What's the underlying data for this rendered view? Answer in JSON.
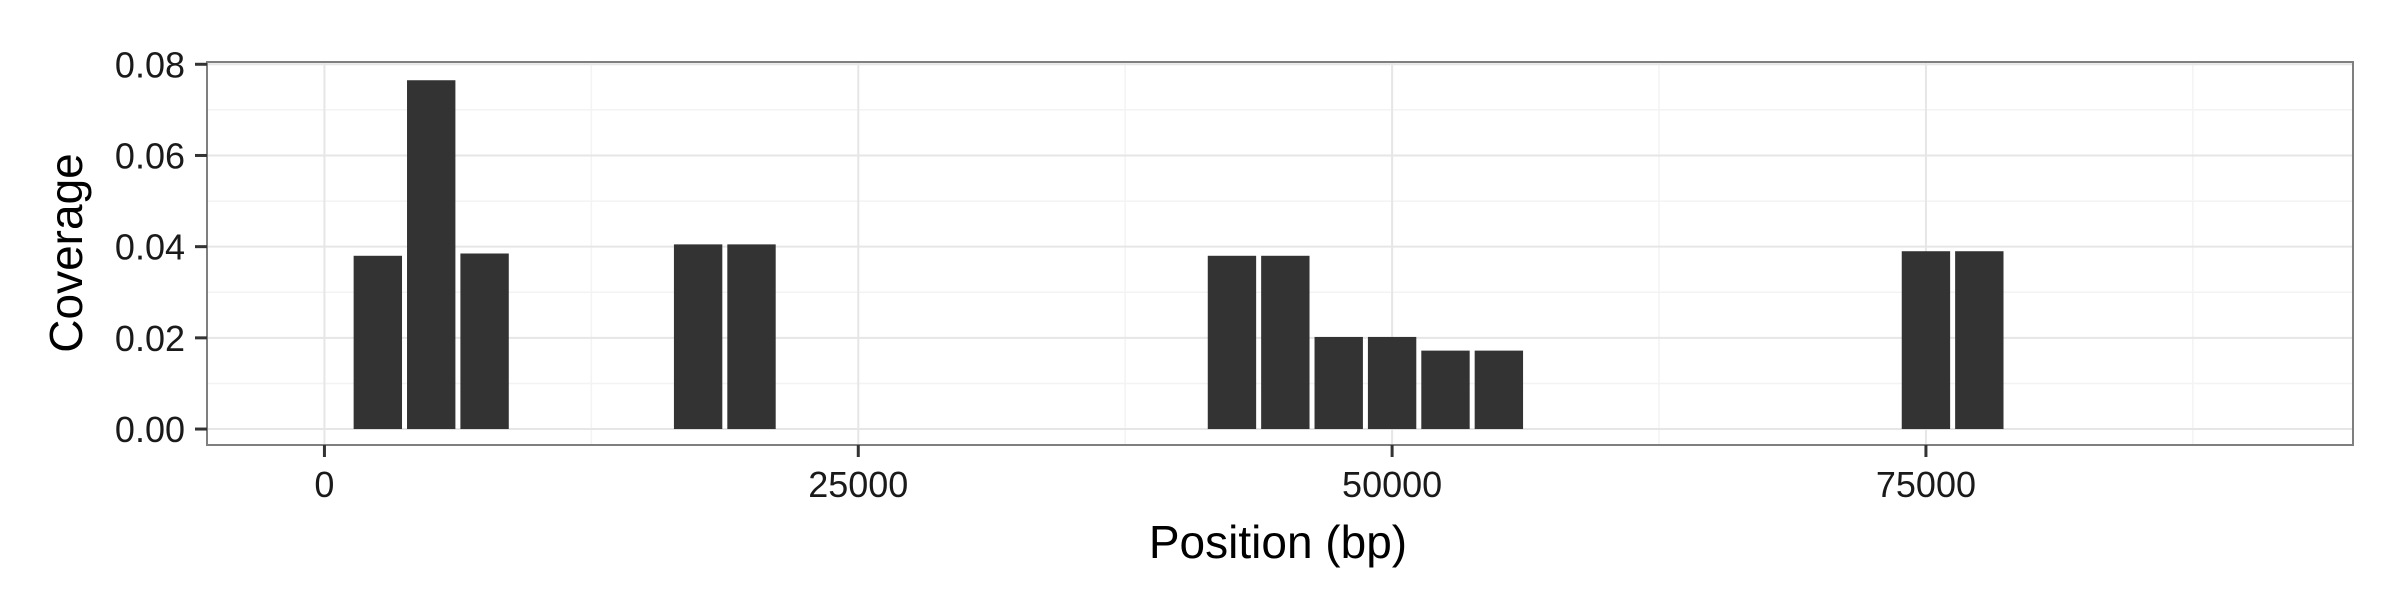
{
  "chart_data": {
    "type": "bar",
    "title": "",
    "xlabel": "Position (bp)",
    "ylabel": "Coverage",
    "xlim": [
      -5500,
      95000
    ],
    "ylim": [
      -0.0035,
      0.0805
    ],
    "x_ticks": [
      0,
      25000,
      50000,
      75000
    ],
    "x_tick_labels": [
      "0",
      "25000",
      "50000",
      "75000"
    ],
    "y_ticks": [
      0.0,
      0.02,
      0.04,
      0.06,
      0.08
    ],
    "y_tick_labels": [
      "0.00",
      "0.02",
      "0.04",
      "0.06",
      "0.08"
    ],
    "bin_width": 2500,
    "grid": true,
    "bars": [
      {
        "x": 2500,
        "y": 0.038
      },
      {
        "x": 5000,
        "y": 0.0765
      },
      {
        "x": 7500,
        "y": 0.0385
      },
      {
        "x": 17500,
        "y": 0.0405
      },
      {
        "x": 20000,
        "y": 0.0405
      },
      {
        "x": 42500,
        "y": 0.038
      },
      {
        "x": 45000,
        "y": 0.038
      },
      {
        "x": 47500,
        "y": 0.0202
      },
      {
        "x": 50000,
        "y": 0.0202
      },
      {
        "x": 52500,
        "y": 0.0172
      },
      {
        "x": 55000,
        "y": 0.0172
      },
      {
        "x": 75000,
        "y": 0.039
      },
      {
        "x": 77500,
        "y": 0.039
      }
    ],
    "colors": {
      "bar": "#333333",
      "panel_border": "#7f7f7f",
      "grid_major": "#e6e6e6",
      "grid_minor": "#f3f3f3",
      "tick": "#333333"
    }
  }
}
